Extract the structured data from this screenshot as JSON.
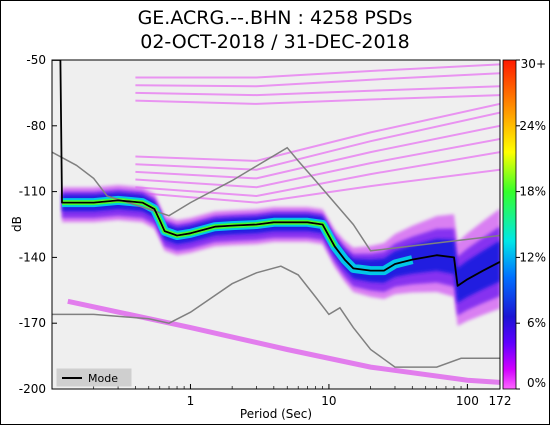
{
  "title_line1": "GE.ACRG.--.BHN : 4258 PSDs",
  "title_line2": "02-OCT-2018 / 31-DEC-2018",
  "chart_data": {
    "type": "heatmap",
    "description_type": "probabilistic power spectral density",
    "xlabel": "Period (Sec)",
    "ylabel": "dB",
    "x_scale": "log",
    "xlim": [
      0.1,
      172
    ],
    "ylim": [
      -200,
      -50
    ],
    "x_ticks": [
      {
        "value": 1,
        "label": "1"
      },
      {
        "value": 10,
        "label": "10"
      },
      {
        "value": 100,
        "label": "100"
      },
      {
        "value": 172,
        "label": "172"
      }
    ],
    "y_ticks": [
      -50,
      -80,
      -110,
      -140,
      -170,
      -200
    ],
    "colorbar": {
      "ticks": [
        "30+",
        "24%",
        "18%",
        "12%",
        "6%",
        "0%"
      ],
      "colors": [
        "#ff1a00",
        "#ff8c00",
        "#ffff00",
        "#35ff2b",
        "#00e7e7",
        "#0070ff",
        "#1b14d4",
        "#5f00ff",
        "#d100ff",
        "#ff66ff"
      ]
    },
    "legend": {
      "position": "lower-left",
      "entries": [
        "Mode"
      ]
    },
    "background_color": "#efefef",
    "series": [
      {
        "name": "Mode",
        "color": "#000000",
        "points": [
          [
            0.1,
            -50
          ],
          [
            0.115,
            -50
          ],
          [
            0.118,
            -115
          ],
          [
            0.2,
            -115
          ],
          [
            0.3,
            -114
          ],
          [
            0.45,
            -115
          ],
          [
            0.55,
            -118
          ],
          [
            0.6,
            -123
          ],
          [
            0.65,
            -128
          ],
          [
            0.8,
            -130
          ],
          [
            1.0,
            -129
          ],
          [
            1.5,
            -126
          ],
          [
            2.0,
            -125.5
          ],
          [
            3.0,
            -125
          ],
          [
            4.0,
            -124
          ],
          [
            5.0,
            -124
          ],
          [
            7.0,
            -124
          ],
          [
            9.0,
            -125
          ],
          [
            11.0,
            -135
          ],
          [
            13.0,
            -141
          ],
          [
            15.0,
            -145
          ],
          [
            20.0,
            -146
          ],
          [
            25.0,
            -146
          ],
          [
            30.0,
            -143
          ],
          [
            40.0,
            -141
          ],
          [
            60.0,
            -139
          ],
          [
            80.0,
            -140
          ],
          [
            85.0,
            -153
          ],
          [
            100.0,
            -150
          ],
          [
            130.0,
            -146
          ],
          [
            172.0,
            -142
          ]
        ]
      },
      {
        "name": "",
        "color": "#808080",
        "points": [
          [
            0.1,
            -92
          ],
          [
            0.15,
            -98
          ],
          [
            0.2,
            -104
          ],
          [
            0.25,
            -112
          ],
          [
            0.5,
            -118
          ],
          [
            0.7,
            -121
          ],
          [
            1.0,
            -115
          ],
          [
            2.0,
            -105
          ],
          [
            5.0,
            -90
          ],
          [
            6.0,
            -96
          ],
          [
            8.0,
            -105
          ],
          [
            15.0,
            -125
          ],
          [
            20.0,
            -137
          ],
          [
            172.0,
            -130
          ]
        ]
      },
      {
        "name": "",
        "color": "#808080",
        "points": [
          [
            0.1,
            -166
          ],
          [
            0.2,
            -166
          ],
          [
            0.5,
            -168
          ],
          [
            0.7,
            -170
          ],
          [
            1.0,
            -165
          ],
          [
            2.0,
            -152
          ],
          [
            3.0,
            -147
          ],
          [
            4.5,
            -144
          ],
          [
            6.0,
            -148
          ],
          [
            8.0,
            -158
          ],
          [
            10.0,
            -166
          ],
          [
            12.0,
            -163
          ],
          [
            15.0,
            -172
          ],
          [
            20.0,
            -182
          ],
          [
            30.0,
            -190
          ],
          [
            60.0,
            -190
          ],
          [
            90.0,
            -186
          ],
          [
            172.0,
            -186
          ]
        ]
      }
    ]
  }
}
